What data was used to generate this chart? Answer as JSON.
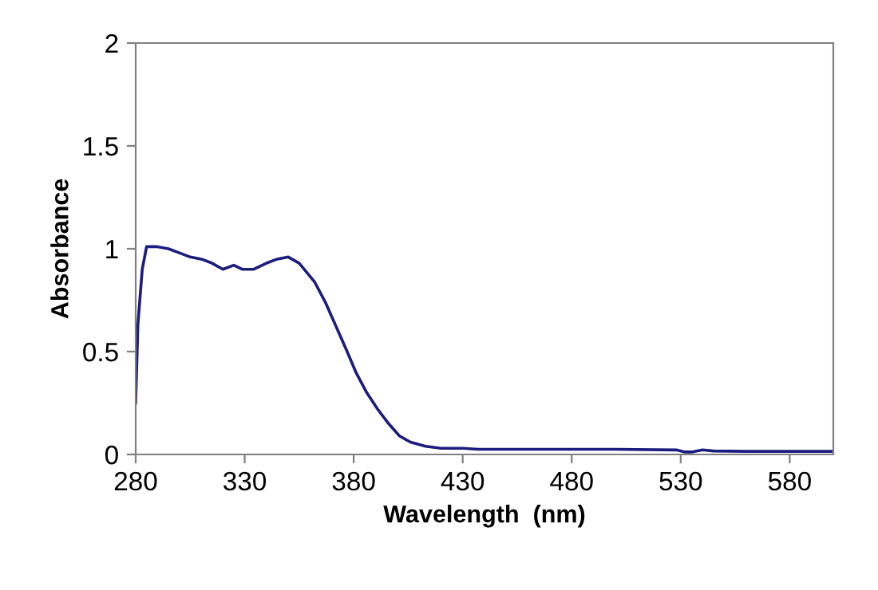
{
  "chart_data": {
    "type": "line",
    "xlabel": "Wavelength  (nm)",
    "ylabel": "Absorbance",
    "xlim": [
      280,
      600
    ],
    "xticks": [
      280,
      330,
      380,
      430,
      480,
      530,
      580
    ],
    "ylim": [
      0,
      2
    ],
    "yticks": [
      0,
      0.5,
      1,
      1.5,
      2
    ],
    "grid": false,
    "legend": false,
    "series": [
      {
        "color": "#1c1c80",
        "x": [
          280,
          281,
          283,
          285,
          290,
          295,
          300,
          305,
          310,
          315,
          320,
          325,
          329,
          334,
          340,
          345,
          350,
          355,
          362,
          367,
          372,
          377,
          381,
          386,
          391,
          396,
          401,
          406,
          413,
          420,
          430,
          437,
          460,
          500,
          528,
          532,
          535,
          540,
          545,
          560,
          600
        ],
        "values": [
          0.25,
          0.63,
          0.9,
          1.01,
          1.01,
          1.0,
          0.98,
          0.96,
          0.95,
          0.93,
          0.9,
          0.92,
          0.9,
          0.9,
          0.93,
          0.95,
          0.96,
          0.93,
          0.84,
          0.74,
          0.62,
          0.5,
          0.4,
          0.3,
          0.22,
          0.15,
          0.09,
          0.06,
          0.04,
          0.03,
          0.03,
          0.025,
          0.025,
          0.025,
          0.022,
          0.012,
          0.012,
          0.022,
          0.017,
          0.015,
          0.015
        ]
      }
    ]
  }
}
